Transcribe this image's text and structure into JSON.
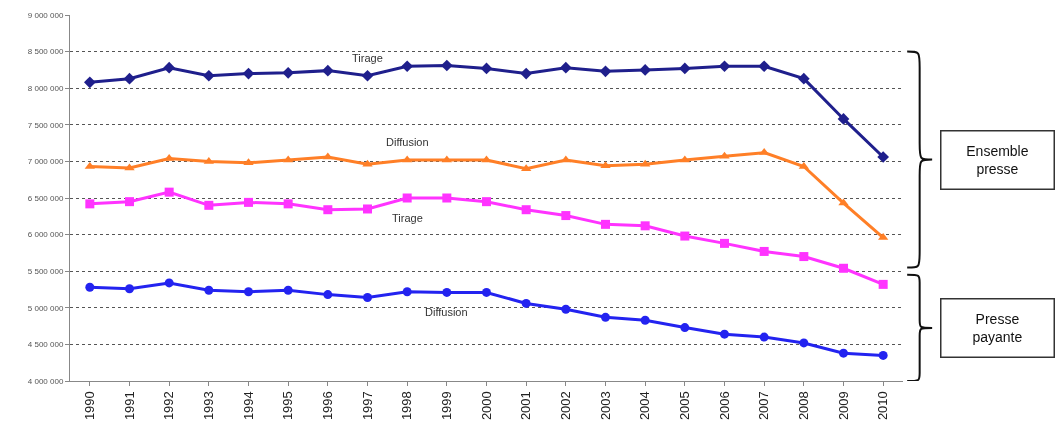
{
  "chart_data": {
    "type": "line",
    "categories": [
      "1990",
      "1991",
      "1992",
      "1993",
      "1994",
      "1995",
      "1996",
      "1997",
      "1998",
      "1999",
      "2000",
      "2001",
      "2002",
      "2003",
      "2004",
      "2005",
      "2006",
      "2007",
      "2008",
      "2009",
      "2010"
    ],
    "series": [
      {
        "name": "Tirage",
        "color": "#1f1f8c",
        "marker": "diamond",
        "values": [
          8080000,
          8130000,
          8280000,
          8170000,
          8200000,
          8210000,
          8240000,
          8170000,
          8300000,
          8310000,
          8270000,
          8200000,
          8280000,
          8230000,
          8250000,
          8270000,
          8300000,
          8300000,
          8130000,
          7580000,
          7060000
        ]
      },
      {
        "name": "Diffusion",
        "color": "#ff7f27",
        "marker": "triangle",
        "values": [
          6930000,
          6910000,
          7040000,
          7000000,
          6980000,
          7020000,
          7060000,
          6960000,
          7020000,
          7020000,
          7020000,
          6900000,
          7020000,
          6940000,
          6960000,
          7020000,
          7070000,
          7120000,
          6930000,
          6430000,
          5960000
        ]
      },
      {
        "name": "Tirage",
        "color": "#ff33ff",
        "marker": "square",
        "values": [
          6420000,
          6450000,
          6580000,
          6400000,
          6440000,
          6420000,
          6340000,
          6350000,
          6500000,
          6500000,
          6450000,
          6340000,
          6260000,
          6140000,
          6120000,
          5980000,
          5880000,
          5770000,
          5700000,
          5540000,
          5320000
        ]
      },
      {
        "name": "Diffusion",
        "color": "#2323f0",
        "marker": "circle",
        "values": [
          5280000,
          5260000,
          5340000,
          5240000,
          5220000,
          5240000,
          5180000,
          5140000,
          5220000,
          5210000,
          5210000,
          5060000,
          4980000,
          4870000,
          4830000,
          4730000,
          4640000,
          4600000,
          4520000,
          4380000,
          4350000
        ]
      }
    ],
    "ylim": [
      4000000,
      9000000
    ],
    "yticks": [
      {
        "value": 4000000,
        "label": "4 000 000"
      },
      {
        "value": 4500000,
        "label": "4 500 000"
      },
      {
        "value": 5000000,
        "label": "5 000 000"
      },
      {
        "value": 5500000,
        "label": "5 500 000"
      },
      {
        "value": 6000000,
        "label": "6 000 000"
      },
      {
        "value": 6500000,
        "label": "6 500 000"
      },
      {
        "value": 7000000,
        "label": "7 000 000"
      },
      {
        "value": 7500000,
        "label": "7 500 000"
      },
      {
        "value": 8000000,
        "label": "8 000 000"
      },
      {
        "value": 8500000,
        "label": "8 500 000"
      },
      {
        "value": 9000000,
        "label": "9 000 000"
      }
    ],
    "grid": "y",
    "legend": false,
    "line_style": "solid",
    "annotations": [
      "Ensemble\npresse",
      "Presse\npayante"
    ]
  }
}
